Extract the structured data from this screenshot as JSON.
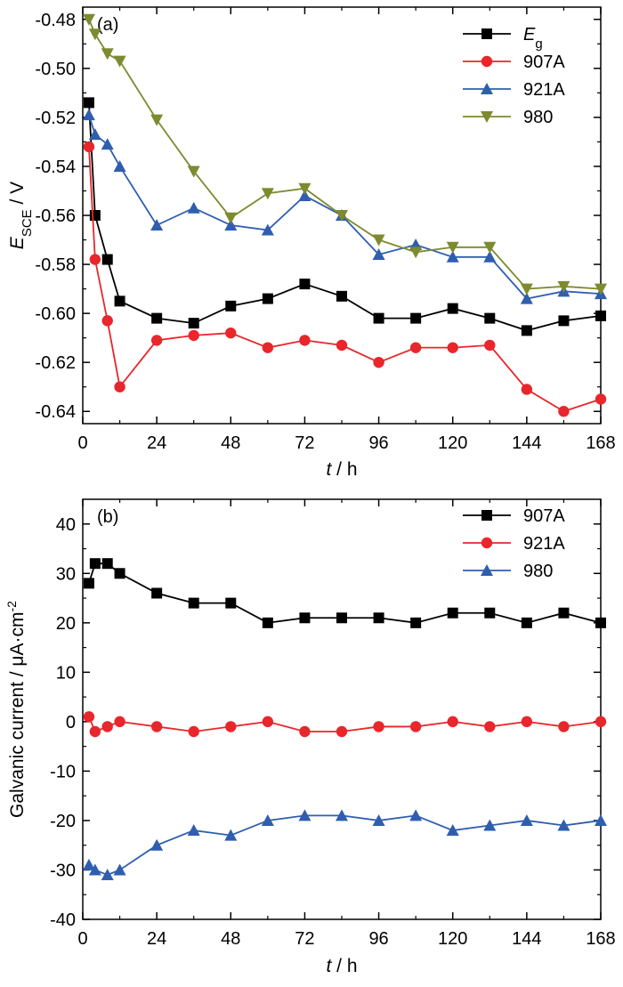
{
  "chart_data": [
    {
      "type": "line",
      "panel_label": "(a)",
      "xlabel_var": "t",
      "xlabel_unit": " / h",
      "ylabel_main": "E",
      "ylabel_sub": "SCE",
      "ylabel_unit": " / V",
      "xlim": [
        0,
        168
      ],
      "ylim": [
        -0.645,
        -0.475
      ],
      "x_ticks": [
        0,
        24,
        48,
        72,
        96,
        120,
        144,
        168
      ],
      "x_tick_labels": [
        "0",
        "24",
        "48",
        "72",
        "96",
        "120",
        "144",
        "168"
      ],
      "y_ticks": [
        -0.64,
        -0.62,
        -0.6,
        -0.58,
        -0.56,
        -0.54,
        -0.52,
        -0.5,
        -0.48
      ],
      "y_tick_labels": [
        "-0.64",
        "-0.62",
        "-0.60",
        "-0.58",
        "-0.56",
        "-0.54",
        "-0.52",
        "-0.50",
        "-0.48"
      ],
      "grid": false,
      "legend_position": "top-right",
      "series": [
        {
          "name": "E",
          "name_sub": "g",
          "color": "#000000",
          "marker": "square",
          "x": [
            2,
            4,
            8,
            12,
            24,
            36,
            48,
            60,
            72,
            84,
            96,
            108,
            120,
            132,
            144,
            156,
            168
          ],
          "y": [
            -0.514,
            -0.56,
            -0.578,
            -0.595,
            -0.602,
            -0.604,
            -0.597,
            -0.594,
            -0.588,
            -0.593,
            -0.602,
            -0.602,
            -0.598,
            -0.602,
            -0.607,
            -0.603,
            -0.601
          ]
        },
        {
          "name": "907A",
          "color": "#e8262b",
          "marker": "circle",
          "x": [
            2,
            4,
            8,
            12,
            24,
            36,
            48,
            60,
            72,
            84,
            96,
            108,
            120,
            132,
            144,
            156,
            168
          ],
          "y": [
            -0.532,
            -0.578,
            -0.603,
            -0.63,
            -0.611,
            -0.609,
            -0.608,
            -0.614,
            -0.611,
            -0.613,
            -0.62,
            -0.614,
            -0.614,
            -0.613,
            -0.631,
            -0.64,
            -0.635
          ]
        },
        {
          "name": "921A",
          "color": "#2f5eaf",
          "marker": "triangle-up",
          "x": [
            2,
            4,
            8,
            12,
            24,
            36,
            48,
            60,
            72,
            84,
            96,
            108,
            120,
            132,
            144,
            156,
            168
          ],
          "y": [
            -0.519,
            -0.527,
            -0.531,
            -0.54,
            -0.564,
            -0.557,
            -0.564,
            -0.566,
            -0.552,
            -0.56,
            -0.576,
            -0.572,
            -0.577,
            -0.577,
            -0.594,
            -0.591,
            -0.592
          ]
        },
        {
          "name": "980",
          "color": "#7d8a2e",
          "marker": "triangle-down",
          "x": [
            2,
            4,
            8,
            12,
            24,
            36,
            48,
            60,
            72,
            84,
            96,
            108,
            120,
            132,
            144,
            156,
            168
          ],
          "y": [
            -0.48,
            -0.486,
            -0.494,
            -0.497,
            -0.521,
            -0.542,
            -0.561,
            -0.551,
            -0.549,
            -0.56,
            -0.57,
            -0.575,
            -0.573,
            -0.573,
            -0.59,
            -0.589,
            -0.59
          ]
        }
      ]
    },
    {
      "type": "line",
      "panel_label": "(b)",
      "xlabel_var": "t",
      "xlabel_unit": " / h",
      "ylabel_main": "Galvanic current / μA·cm",
      "ylabel_sup": "-2",
      "xlim": [
        0,
        168
      ],
      "ylim": [
        -40,
        45
      ],
      "x_ticks": [
        0,
        24,
        48,
        72,
        96,
        120,
        144,
        168
      ],
      "x_tick_labels": [
        "0",
        "24",
        "48",
        "72",
        "96",
        "120",
        "144",
        "168"
      ],
      "y_ticks": [
        -40,
        -30,
        -20,
        -10,
        0,
        10,
        20,
        30,
        40
      ],
      "y_tick_labels": [
        "-40",
        "-30",
        "-20",
        "-10",
        "0",
        "10",
        "20",
        "30",
        "40"
      ],
      "grid": false,
      "legend_position": "top-right",
      "series": [
        {
          "name": "907A",
          "color": "#000000",
          "marker": "square",
          "x": [
            2,
            4,
            8,
            12,
            24,
            36,
            48,
            60,
            72,
            84,
            96,
            108,
            120,
            132,
            144,
            156,
            168
          ],
          "y": [
            28,
            32,
            32,
            30,
            26,
            24,
            24,
            20,
            21,
            21,
            21,
            20,
            22,
            22,
            20,
            22,
            20
          ]
        },
        {
          "name": "921A",
          "color": "#e8262b",
          "marker": "circle",
          "x": [
            2,
            4,
            8,
            12,
            24,
            36,
            48,
            60,
            72,
            84,
            96,
            108,
            120,
            132,
            144,
            156,
            168
          ],
          "y": [
            1,
            -2,
            -1,
            0,
            -1,
            -2,
            -1,
            0,
            -2,
            -2,
            -1,
            -1,
            0,
            -1,
            0,
            -1,
            0
          ]
        },
        {
          "name": "980",
          "color": "#2f5eaf",
          "marker": "triangle-up",
          "x": [
            2,
            4,
            8,
            12,
            24,
            36,
            48,
            60,
            72,
            84,
            96,
            108,
            120,
            132,
            144,
            156,
            168
          ],
          "y": [
            -29,
            -30,
            -31,
            -30,
            -25,
            -22,
            -23,
            -20,
            -19,
            -19,
            -20,
            -19,
            -22,
            -21,
            -20,
            -21,
            -20
          ]
        }
      ]
    }
  ]
}
